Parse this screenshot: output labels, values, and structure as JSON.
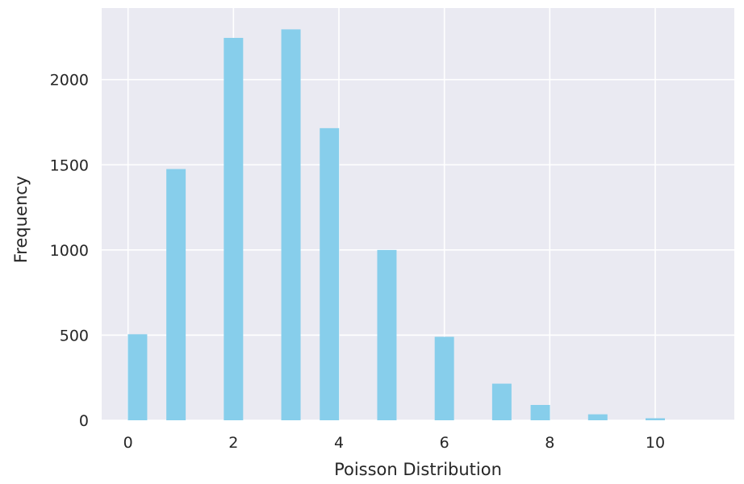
{
  "chart_data": {
    "type": "bar",
    "xlabel": "Poisson Distribution",
    "ylabel": "Frequency",
    "xlim": [
      -0.5,
      11.5
    ],
    "ylim": [
      0,
      2420
    ],
    "grid": true,
    "x_ticks": [
      0,
      2,
      4,
      6,
      8,
      10
    ],
    "y_ticks": [
      0,
      500,
      1000,
      1500,
      2000
    ],
    "bar_width": 0.367,
    "bars": [
      {
        "x": 0.18,
        "value": 505
      },
      {
        "x": 0.91,
        "value": 1475
      },
      {
        "x": 2.0,
        "value": 2245
      },
      {
        "x": 3.09,
        "value": 2295
      },
      {
        "x": 3.82,
        "value": 1715
      },
      {
        "x": 4.91,
        "value": 1000
      },
      {
        "x": 6.0,
        "value": 490
      },
      {
        "x": 7.09,
        "value": 215
      },
      {
        "x": 7.82,
        "value": 90
      },
      {
        "x": 8.91,
        "value": 35
      },
      {
        "x": 10.0,
        "value": 12
      }
    ],
    "colors": {
      "bar": "#87ceeb",
      "plot_background": "#eaeaf2",
      "grid": "#ffffff"
    }
  }
}
